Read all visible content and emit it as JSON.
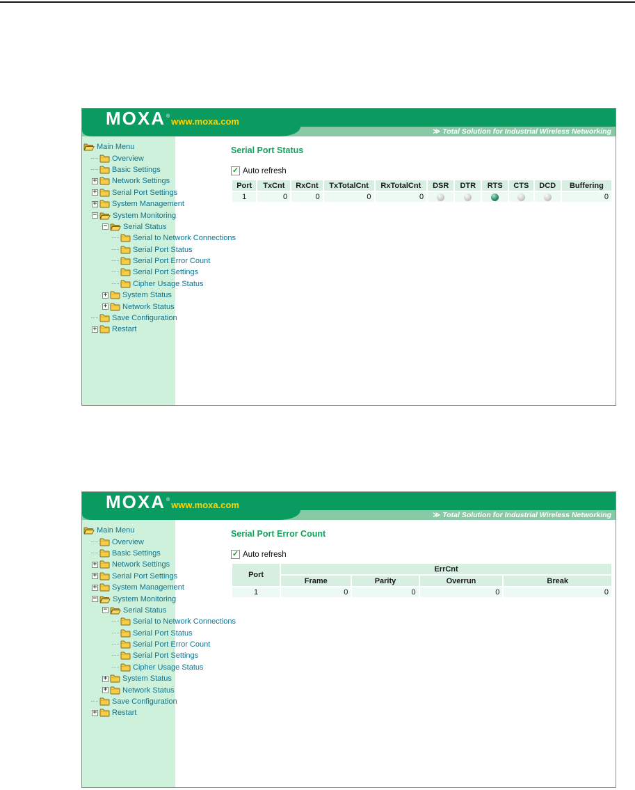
{
  "header": {
    "logo": "MOXA",
    "logo_reg": "®",
    "logo_url": "www.moxa.com",
    "tagline_arrow": "≫",
    "tagline": "Total Solution for Industrial Wireless Networking",
    "banner_green": "#0a9b60",
    "strip_green": "#87c8a5"
  },
  "sidebar": {
    "items": [
      {
        "label": "Main Menu",
        "indent": 0,
        "icon": "open-folder",
        "expand": null
      },
      {
        "label": "Overview",
        "indent": 1,
        "icon": "folder",
        "expand": null
      },
      {
        "label": "Basic Settings",
        "indent": 1,
        "icon": "folder",
        "expand": null
      },
      {
        "label": "Network Settings",
        "indent": 1,
        "icon": "folder",
        "expand": "plus"
      },
      {
        "label": "Serial Port Settings",
        "indent": 1,
        "icon": "folder",
        "expand": "plus"
      },
      {
        "label": "System Management",
        "indent": 1,
        "icon": "folder",
        "expand": "plus"
      },
      {
        "label": "System Monitoring",
        "indent": 1,
        "icon": "open-folder",
        "expand": "minus"
      },
      {
        "label": "Serial Status",
        "indent": 2,
        "icon": "open-folder",
        "expand": "minus"
      },
      {
        "label": "Serial to Network Connections",
        "indent": 3,
        "icon": "folder",
        "expand": null
      },
      {
        "label": "Serial Port Status",
        "indent": 3,
        "icon": "folder",
        "expand": null
      },
      {
        "label": "Serial Port Error Count",
        "indent": 3,
        "icon": "folder",
        "expand": null
      },
      {
        "label": "Serial Port Settings",
        "indent": 3,
        "icon": "folder",
        "expand": null
      },
      {
        "label": "Cipher Usage Status",
        "indent": 3,
        "icon": "folder",
        "expand": null
      },
      {
        "label": "System Status",
        "indent": 2,
        "icon": "folder",
        "expand": "plus"
      },
      {
        "label": "Network Status",
        "indent": 2,
        "icon": "folder",
        "expand": "plus"
      },
      {
        "label": "Save Configuration",
        "indent": 1,
        "icon": "folder",
        "expand": null
      },
      {
        "label": "Restart",
        "indent": 1,
        "icon": "folder",
        "expand": "plus"
      }
    ]
  },
  "screen1": {
    "title": "Serial Port Status",
    "auto_refresh_label": "Auto refresh",
    "auto_refresh_checked": true,
    "table": {
      "columns": [
        "Port",
        "TxCnt",
        "RxCnt",
        "TxTotalCnt",
        "RxTotalCnt",
        "DSR",
        "DTR",
        "RTS",
        "CTS",
        "DCD",
        "Buffering"
      ],
      "rows": [
        [
          "1",
          "0",
          "0",
          "0",
          "0",
          "led:off",
          "led:off",
          "led:on",
          "led:off",
          "led:off",
          "0"
        ]
      ],
      "led_on_color": "#2e8c68",
      "led_off_color": "#cfcfcf"
    }
  },
  "screen2": {
    "title": "Serial Port Error Count",
    "auto_refresh_label": "Auto refresh",
    "auto_refresh_checked": true,
    "table": {
      "port_header": "Port",
      "group_header": "ErrCnt",
      "sub_columns": [
        "Frame",
        "Parity",
        "Overrun",
        "Break"
      ],
      "rows": [
        [
          "1",
          "0",
          "0",
          "0",
          "0"
        ]
      ]
    }
  }
}
